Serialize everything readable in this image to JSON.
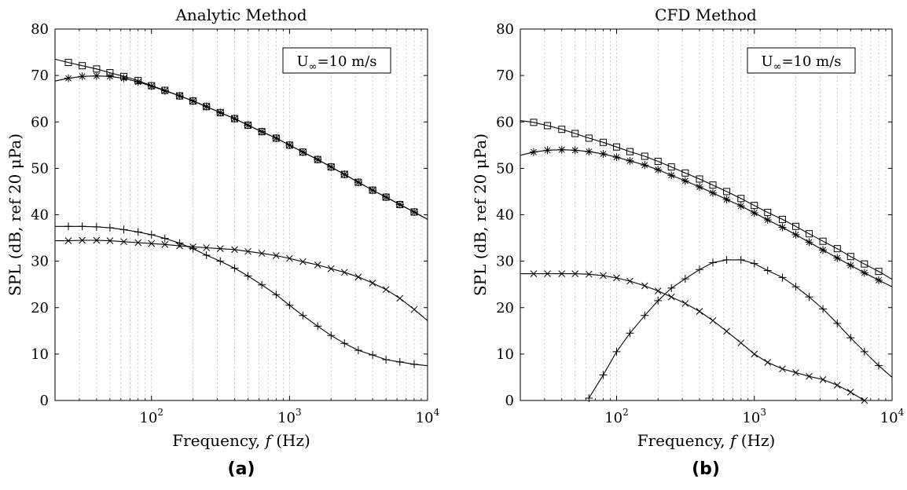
{
  "chart_data": [
    {
      "type": "line",
      "panel_label": "(a)",
      "title": "Analytic Method",
      "xlabel": "Frequency, f (Hz)",
      "ylabel": "SPL (dB, ref 20 μPa)",
      "xscale": "log",
      "xlim": [
        20,
        10000
      ],
      "ylim": [
        0,
        80
      ],
      "yticks": [
        0,
        10,
        20,
        30,
        40,
        50,
        60,
        70,
        80
      ],
      "xticks": [
        "10^2",
        "10^3",
        "10^4"
      ],
      "grid": "vertical minor dotted",
      "annotation": "U∞=10 m/s",
      "annotation_position": "top-right",
      "x": [
        20,
        25,
        31.5,
        40,
        50,
        63,
        80,
        100,
        125,
        160,
        200,
        250,
        315,
        400,
        500,
        630,
        800,
        1000,
        1250,
        1600,
        2000,
        2500,
        3150,
        4000,
        5000,
        6300,
        8000,
        10000
      ],
      "series": [
        {
          "marker": "square",
          "values": [
            73.5,
            72.8,
            72.1,
            71.4,
            70.6,
            69.8,
            68.9,
            67.8,
            66.8,
            65.6,
            64.5,
            63.3,
            62.0,
            60.7,
            59.3,
            57.9,
            56.5,
            55.0,
            53.5,
            51.9,
            50.3,
            48.7,
            47.0,
            45.3,
            43.8,
            42.2,
            40.6,
            39.0
          ]
        },
        {
          "marker": "asterisk",
          "values": [
            68.8,
            69.4,
            69.8,
            69.9,
            69.8,
            69.4,
            68.6,
            67.7,
            66.7,
            65.6,
            64.5,
            63.3,
            62.0,
            60.7,
            59.3,
            57.9,
            56.5,
            55.0,
            53.5,
            51.9,
            50.3,
            48.7,
            47.0,
            45.3,
            43.8,
            42.2,
            40.6,
            39.0
          ]
        },
        {
          "marker": "plus",
          "values": [
            37.5,
            37.5,
            37.5,
            37.4,
            37.2,
            36.8,
            36.3,
            35.7,
            34.9,
            33.9,
            32.7,
            31.3,
            30.0,
            28.5,
            26.8,
            24.9,
            22.8,
            20.5,
            18.3,
            16.0,
            14.0,
            12.3,
            10.8,
            9.8,
            8.8,
            8.3,
            7.8,
            7.5
          ]
        },
        {
          "marker": "cross",
          "values": [
            34.4,
            34.4,
            34.5,
            34.5,
            34.4,
            34.2,
            34.0,
            33.8,
            33.6,
            33.3,
            33.1,
            32.9,
            32.7,
            32.5,
            32.1,
            31.7,
            31.2,
            30.6,
            29.9,
            29.2,
            28.4,
            27.6,
            26.6,
            25.3,
            23.9,
            22.0,
            19.6,
            17.2
          ]
        }
      ]
    },
    {
      "type": "line",
      "panel_label": "(b)",
      "title": "CFD Method",
      "xlabel": "Frequency, f (Hz)",
      "ylabel": "SPL (dB, ref 20 μPa)",
      "xscale": "log",
      "xlim": [
        20,
        10000
      ],
      "ylim": [
        0,
        80
      ],
      "yticks": [
        0,
        10,
        20,
        30,
        40,
        50,
        60,
        70,
        80
      ],
      "xticks": [
        "10^2",
        "10^3",
        "10^4"
      ],
      "grid": "vertical minor dotted",
      "annotation": "U∞=10 m/s",
      "annotation_position": "top-right",
      "x": [
        20,
        25,
        31.5,
        40,
        50,
        63,
        80,
        100,
        125,
        160,
        200,
        250,
        315,
        400,
        500,
        630,
        800,
        1000,
        1250,
        1600,
        2000,
        2500,
        3150,
        4000,
        5000,
        6300,
        8000,
        10000
      ],
      "series": [
        {
          "marker": "square",
          "values": [
            60.3,
            59.9,
            59.2,
            58.4,
            57.5,
            56.5,
            55.6,
            54.6,
            53.6,
            52.6,
            51.5,
            50.3,
            49.0,
            47.7,
            46.4,
            45.0,
            43.5,
            42.0,
            40.5,
            39.0,
            37.5,
            35.9,
            34.3,
            32.7,
            31.0,
            29.4,
            27.8,
            26.1
          ]
        },
        {
          "marker": "asterisk",
          "values": [
            52.8,
            53.5,
            53.9,
            54.0,
            53.9,
            53.6,
            53.1,
            52.4,
            51.6,
            50.7,
            49.7,
            48.5,
            47.3,
            46.0,
            44.7,
            43.3,
            41.9,
            40.4,
            38.9,
            37.3,
            35.7,
            34.1,
            32.4,
            30.7,
            29.1,
            27.5,
            25.9,
            24.5
          ]
        },
        {
          "marker": "plus",
          "values": [
            null,
            null,
            null,
            null,
            null,
            0.5,
            5.5,
            10.5,
            14.5,
            18.3,
            21.5,
            24.2,
            26.2,
            28.2,
            29.7,
            30.3,
            30.3,
            29.5,
            28.0,
            26.5,
            24.5,
            22.3,
            19.7,
            16.6,
            13.5,
            10.5,
            7.5,
            5.0
          ]
        },
        {
          "marker": "cross",
          "values": [
            27.3,
            27.3,
            27.3,
            27.3,
            27.3,
            27.2,
            26.9,
            26.4,
            25.7,
            24.7,
            23.6,
            22.3,
            20.9,
            19.2,
            17.2,
            14.9,
            12.4,
            10.0,
            8.2,
            6.8,
            6.0,
            5.2,
            4.5,
            3.3,
            1.8,
            0.0,
            null,
            null
          ]
        }
      ]
    }
  ]
}
